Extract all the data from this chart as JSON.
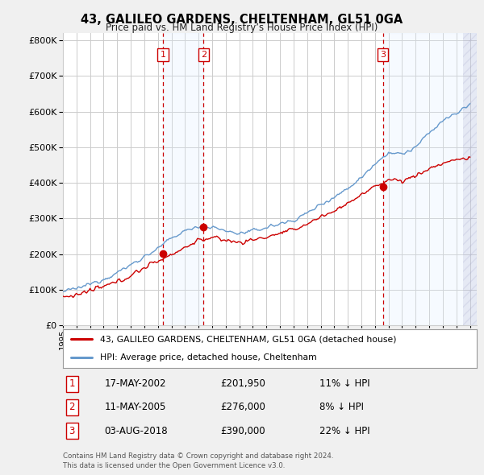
{
  "title": "43, GALILEO GARDENS, CHELTENHAM, GL51 0GA",
  "subtitle": "Price paid vs. HM Land Registry’s House Price Index (HPI)",
  "legend_label_red": "43, GALILEO GARDENS, CHELTENHAM, GL51 0GA (detached house)",
  "legend_label_blue": "HPI: Average price, detached house, Cheltenham",
  "ylim": [
    0,
    820000
  ],
  "yticks": [
    0,
    100000,
    200000,
    300000,
    400000,
    500000,
    600000,
    700000,
    800000
  ],
  "xlim_start": 1995.0,
  "xlim_end": 2025.5,
  "sale_dates_decimal": [
    2002.37,
    2005.36,
    2018.59
  ],
  "sale_prices": [
    201950,
    276000,
    390000
  ],
  "sale_labels": [
    "1",
    "2",
    "3"
  ],
  "table_rows": [
    [
      "1",
      "17-MAY-2002",
      "£201,950",
      "11% ↓ HPI"
    ],
    [
      "2",
      "11-MAY-2005",
      "£276,000",
      "8% ↓ HPI"
    ],
    [
      "3",
      "03-AUG-2018",
      "£390,000",
      "22% ↓ HPI"
    ]
  ],
  "footnote": "Contains HM Land Registry data © Crown copyright and database right 2024.\nThis data is licensed under the Open Government Licence v3.0.",
  "bg_color": "#f0f0f0",
  "plot_bg_color": "#ffffff",
  "red_color": "#cc0000",
  "blue_color": "#6699cc",
  "shade_color": "#ddeeff",
  "vline_color": "#cc0000",
  "grid_color": "#cccccc",
  "hatch_color": "#aaaacc"
}
